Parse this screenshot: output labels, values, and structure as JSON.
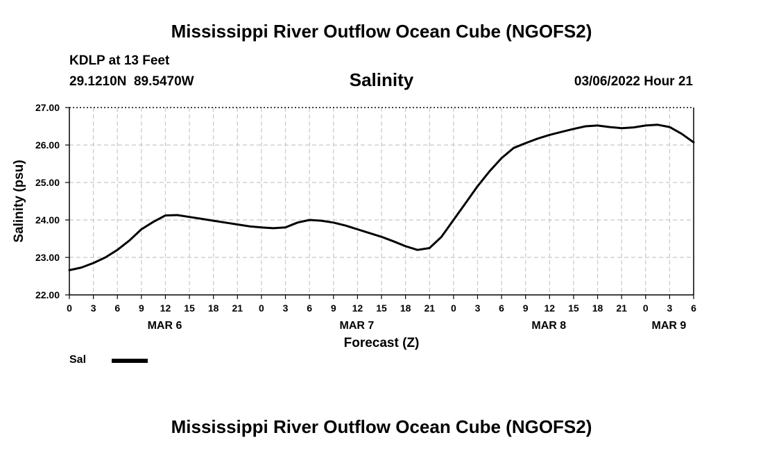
{
  "page": {
    "title_top": "Mississippi River Outflow Ocean Cube (NGOFS2)",
    "title_bottom": "Mississippi River Outflow Ocean Cube (NGOFS2)",
    "station_line": "KDLP at 13 Feet",
    "coords_line": "29.1210N  89.5470W",
    "datetime_line": "03/06/2022 Hour 21"
  },
  "chart_data": {
    "type": "line",
    "title": "Salinity",
    "xlabel": "Forecast (Z)",
    "ylabel": "Salinity (psu)",
    "ylim": [
      22.0,
      27.0
    ],
    "y_ticks": [
      "22.00",
      "23.00",
      "24.00",
      "25.00",
      "26.00",
      "27.00"
    ],
    "x_range_hours": [
      0,
      78
    ],
    "x_tick_labels": [
      "0",
      "3",
      "6",
      "9",
      "12",
      "15",
      "18",
      "21",
      "0",
      "3",
      "6",
      "9",
      "12",
      "15",
      "18",
      "21",
      "0",
      "3",
      "6",
      "9",
      "12",
      "15",
      "18",
      "21",
      "0",
      "3",
      "6"
    ],
    "day_labels": [
      {
        "label": "MAR 6",
        "hour": 12
      },
      {
        "label": "MAR 7",
        "hour": 36
      },
      {
        "label": "MAR 8",
        "hour": 60
      },
      {
        "label": "MAR 9",
        "hour": 75
      }
    ],
    "grid": true,
    "legend": [
      {
        "name": "Sal",
        "color": "#000000"
      }
    ],
    "series": [
      {
        "name": "Sal",
        "color": "#000000",
        "x": [
          0,
          1.5,
          3,
          4.5,
          6,
          7.5,
          9,
          10.5,
          12,
          13.5,
          15,
          16.5,
          18,
          19.5,
          21,
          22.5,
          24,
          25.5,
          27,
          28.5,
          30,
          31.5,
          33,
          34.5,
          36,
          37.5,
          39,
          40.5,
          42,
          43.5,
          45,
          46.5,
          48,
          49.5,
          51,
          52.5,
          54,
          55.5,
          57,
          58.5,
          60,
          61.5,
          63,
          64.5,
          66,
          67.5,
          69,
          70.5,
          72,
          73.5,
          75,
          76.5,
          78
        ],
        "values": [
          22.66,
          22.73,
          22.85,
          23.0,
          23.2,
          23.45,
          23.75,
          23.95,
          24.12,
          24.13,
          24.08,
          24.03,
          23.98,
          23.93,
          23.88,
          23.83,
          23.8,
          23.78,
          23.8,
          23.93,
          24.0,
          23.98,
          23.93,
          23.85,
          23.75,
          23.65,
          23.55,
          23.43,
          23.3,
          23.2,
          23.25,
          23.55,
          24.0,
          24.45,
          24.9,
          25.3,
          25.65,
          25.92,
          26.05,
          26.17,
          26.27,
          26.35,
          26.43,
          26.5,
          26.52,
          26.48,
          26.45,
          26.47,
          26.52,
          26.54,
          26.48,
          26.3,
          26.07
        ]
      }
    ]
  }
}
